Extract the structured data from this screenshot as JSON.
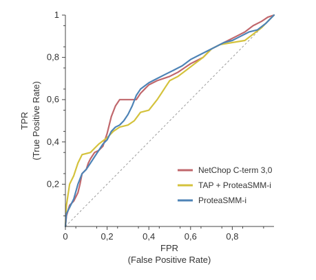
{
  "chart_data": {
    "type": "line",
    "title": "",
    "xlabel": "FPR",
    "xlabel_sub": "(False Positive Rate)",
    "ylabel": "TPR",
    "ylabel_sub": "(True Positive Rate)",
    "xlim": [
      0,
      1
    ],
    "ylim": [
      0,
      1
    ],
    "x_ticks": [
      0,
      0.2,
      0.4,
      0.6,
      0.8
    ],
    "x_tick_labels": [
      "0",
      "0,2",
      "0,4",
      "0,6",
      "0,8"
    ],
    "y_ticks": [
      0.2,
      0.4,
      0.6,
      0.8,
      1
    ],
    "y_tick_labels": [
      "0,2",
      "0,4",
      "0,6",
      "0,8",
      "1"
    ],
    "grid": false,
    "legend_position": "bottom-right",
    "diagonal_reference": true,
    "series": [
      {
        "name": "NetChop C-term 3,0",
        "color": "#c0676c",
        "points": [
          [
            0,
            0
          ],
          [
            0.005,
            0.05
          ],
          [
            0.02,
            0.1
          ],
          [
            0.04,
            0.12
          ],
          [
            0.06,
            0.16
          ],
          [
            0.07,
            0.2
          ],
          [
            0.08,
            0.25
          ],
          [
            0.1,
            0.27
          ],
          [
            0.11,
            0.3
          ],
          [
            0.12,
            0.32
          ],
          [
            0.14,
            0.35
          ],
          [
            0.16,
            0.36
          ],
          [
            0.18,
            0.38
          ],
          [
            0.2,
            0.44
          ],
          [
            0.22,
            0.52
          ],
          [
            0.24,
            0.57
          ],
          [
            0.26,
            0.6
          ],
          [
            0.3,
            0.6
          ],
          [
            0.34,
            0.6
          ],
          [
            0.36,
            0.63
          ],
          [
            0.38,
            0.65
          ],
          [
            0.4,
            0.67
          ],
          [
            0.44,
            0.69
          ],
          [
            0.47,
            0.7
          ],
          [
            0.5,
            0.71
          ],
          [
            0.54,
            0.73
          ],
          [
            0.57,
            0.75
          ],
          [
            0.6,
            0.77
          ],
          [
            0.64,
            0.79
          ],
          [
            0.66,
            0.8
          ],
          [
            0.7,
            0.84
          ],
          [
            0.74,
            0.86
          ],
          [
            0.78,
            0.88
          ],
          [
            0.82,
            0.9
          ],
          [
            0.86,
            0.92
          ],
          [
            0.9,
            0.95
          ],
          [
            0.94,
            0.97
          ],
          [
            0.97,
            0.99
          ],
          [
            1,
            1
          ]
        ]
      },
      {
        "name": "TAP + ProteaSMM-i",
        "color": "#d4c23c",
        "points": [
          [
            0,
            0
          ],
          [
            0.005,
            0.1
          ],
          [
            0.02,
            0.2
          ],
          [
            0.04,
            0.24
          ],
          [
            0.06,
            0.3
          ],
          [
            0.08,
            0.34
          ],
          [
            0.12,
            0.35
          ],
          [
            0.14,
            0.37
          ],
          [
            0.16,
            0.39
          ],
          [
            0.2,
            0.42
          ],
          [
            0.23,
            0.45
          ],
          [
            0.26,
            0.47
          ],
          [
            0.3,
            0.48
          ],
          [
            0.33,
            0.5
          ],
          [
            0.36,
            0.54
          ],
          [
            0.4,
            0.55
          ],
          [
            0.44,
            0.6
          ],
          [
            0.46,
            0.63
          ],
          [
            0.48,
            0.66
          ],
          [
            0.5,
            0.69
          ],
          [
            0.54,
            0.71
          ],
          [
            0.58,
            0.74
          ],
          [
            0.62,
            0.77
          ],
          [
            0.66,
            0.8
          ],
          [
            0.7,
            0.84
          ],
          [
            0.74,
            0.86
          ],
          [
            0.8,
            0.87
          ],
          [
            0.86,
            0.88
          ],
          [
            0.9,
            0.91
          ],
          [
            0.94,
            0.94
          ],
          [
            0.97,
            0.97
          ],
          [
            1,
            1
          ]
        ]
      },
      {
        "name": "ProteaSMM-i",
        "color": "#4d83b6",
        "points": [
          [
            0,
            0
          ],
          [
            0.005,
            0.06
          ],
          [
            0.02,
            0.09
          ],
          [
            0.04,
            0.13
          ],
          [
            0.06,
            0.2
          ],
          [
            0.08,
            0.25
          ],
          [
            0.1,
            0.27
          ],
          [
            0.12,
            0.3
          ],
          [
            0.14,
            0.33
          ],
          [
            0.16,
            0.36
          ],
          [
            0.18,
            0.39
          ],
          [
            0.2,
            0.41
          ],
          [
            0.22,
            0.45
          ],
          [
            0.24,
            0.47
          ],
          [
            0.26,
            0.48
          ],
          [
            0.28,
            0.5
          ],
          [
            0.3,
            0.53
          ],
          [
            0.32,
            0.57
          ],
          [
            0.34,
            0.62
          ],
          [
            0.36,
            0.65
          ],
          [
            0.4,
            0.68
          ],
          [
            0.44,
            0.7
          ],
          [
            0.48,
            0.72
          ],
          [
            0.52,
            0.74
          ],
          [
            0.56,
            0.76
          ],
          [
            0.6,
            0.79
          ],
          [
            0.64,
            0.81
          ],
          [
            0.68,
            0.83
          ],
          [
            0.72,
            0.85
          ],
          [
            0.76,
            0.87
          ],
          [
            0.8,
            0.88
          ],
          [
            0.84,
            0.9
          ],
          [
            0.88,
            0.92
          ],
          [
            0.92,
            0.93
          ],
          [
            0.96,
            0.96
          ],
          [
            1,
            1
          ]
        ]
      }
    ]
  }
}
